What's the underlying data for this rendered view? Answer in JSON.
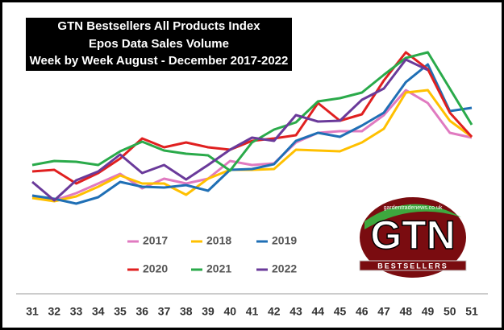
{
  "chart_data": {
    "type": "line",
    "title": [
      "GTN Bestsellers All Products Index",
      "Epos Data Sales Volume",
      "Week by Week August - December 2017-2022"
    ],
    "categories": [
      "31",
      "32",
      "33",
      "34",
      "35",
      "36",
      "37",
      "38",
      "39",
      "40",
      "41",
      "42",
      "43",
      "44",
      "45",
      "46",
      "47",
      "48",
      "49",
      "50",
      "51"
    ],
    "ylim": [
      0,
      250
    ],
    "series": [
      {
        "name": "2017",
        "color": "#e07ac0",
        "values": [
          57,
          51,
          60,
          72,
          84,
          66,
          78,
          72,
          78,
          100,
          95,
          97,
          123,
          135,
          137,
          137,
          157,
          188,
          172,
          135,
          129
        ]
      },
      {
        "name": "2018",
        "color": "#ffc000",
        "values": [
          54,
          50,
          56,
          68,
          82,
          72,
          72,
          58,
          78,
          89,
          89,
          90,
          114,
          113,
          112,
          123,
          140,
          185,
          188,
          150,
          130
        ]
      },
      {
        "name": "2019",
        "color": "#1f6fb5",
        "values": [
          57,
          53,
          47,
          55,
          74,
          68,
          67,
          70,
          63,
          89,
          90,
          96,
          125,
          135,
          130,
          144,
          160,
          198,
          220,
          162,
          166
        ]
      },
      {
        "name": "2020",
        "color": "#e02020",
        "values": [
          87,
          89,
          72,
          85,
          103,
          128,
          117,
          123,
          117,
          114,
          125,
          128,
          132,
          172,
          150,
          158,
          200,
          235,
          214,
          160,
          130
        ]
      },
      {
        "name": "2021",
        "color": "#2aaa4a",
        "values": [
          95,
          100,
          99,
          95,
          112,
          124,
          113,
          109,
          107,
          88,
          123,
          139,
          148,
          174,
          178,
          185,
          207,
          228,
          235,
          190,
          145
        ]
      },
      {
        "name": "2022",
        "color": "#6a3a9a",
        "values": [
          74,
          51,
          76,
          87,
          108,
          85,
          95,
          77,
          95,
          114,
          129,
          125,
          157,
          149,
          150,
          176,
          190,
          226,
          213,
          null,
          null
        ]
      }
    ],
    "logo": {
      "url": "gardentradenews.co.uk",
      "name": "GTN",
      "tag": "BESTSELLERS"
    }
  }
}
